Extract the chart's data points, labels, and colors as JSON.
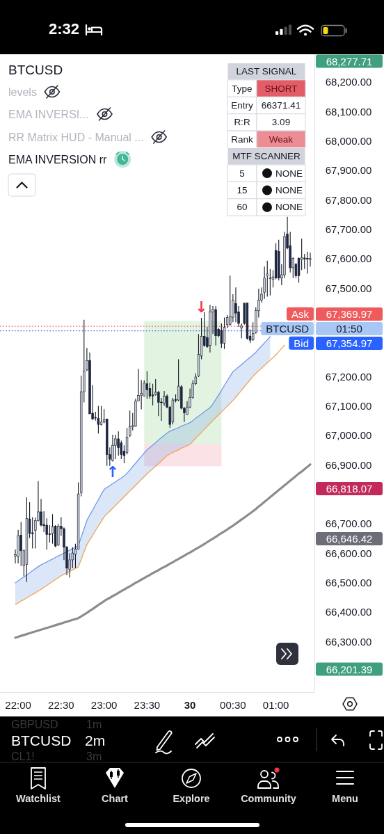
{
  "chart_data": {
    "type": "candlestick",
    "title": "BTCUSD",
    "categories": [
      null,
      "22:00",
      null,
      null,
      null,
      null,
      null,
      null,
      null,
      null,
      null,
      null,
      null,
      null,
      null,
      null,
      "22:30",
      null,
      null,
      null,
      null,
      null,
      null,
      null,
      null,
      null,
      null,
      null,
      null,
      null,
      null,
      "23:00",
      null,
      null,
      null,
      null,
      null,
      null,
      null,
      null,
      null,
      null,
      null,
      null,
      null,
      null,
      "23:30",
      null,
      null,
      null,
      null,
      null,
      null,
      null,
      null,
      null,
      null,
      null,
      null,
      null,
      null,
      "30",
      null,
      null,
      null,
      null,
      null,
      null,
      null,
      null,
      null,
      null,
      null,
      null,
      null,
      null,
      "00:30",
      null,
      null,
      null,
      null,
      null,
      null,
      null,
      null,
      null,
      null,
      null,
      null,
      null,
      null,
      "01:00",
      null,
      null,
      null,
      null,
      null,
      null,
      null,
      null,
      null,
      null,
      null,
      null
    ],
    "ylim": [
      66128,
      68294
    ],
    "yticks": [
      {
        "value": 66300,
        "label": "66,300.00"
      },
      {
        "value": 66400,
        "label": "66,400.00"
      },
      {
        "value": 66500,
        "label": "66,500.00"
      },
      {
        "value": 66600,
        "label": "66,600.00"
      },
      {
        "value": 66700,
        "label": "66,700.00"
      },
      {
        "value": 66900,
        "label": "66,900.00"
      },
      {
        "value": 67000,
        "label": "67,000.00"
      },
      {
        "value": 67100,
        "label": "67,100.00"
      },
      {
        "value": 67200,
        "label": "67,200.00"
      },
      {
        "value": 67500,
        "label": "67,500.00"
      },
      {
        "value": 67600,
        "label": "67,600.00"
      },
      {
        "value": 67700,
        "label": "67,700.00"
      },
      {
        "value": 67800,
        "label": "67,800.00"
      },
      {
        "value": 67900,
        "label": "67,900.00"
      },
      {
        "value": 68000,
        "label": "68,000.00"
      },
      {
        "value": 68100,
        "label": "68,100.00"
      },
      {
        "value": 68200,
        "label": "68,200.00"
      }
    ],
    "series": [
      {
        "type": "line",
        "color": "#8fce8a",
        "values": [
          null,
          null,
          null,
          null,
          null,
          null,
          null,
          null,
          null,
          null,
          null,
          null,
          null,
          null,
          null,
          null,
          null,
          null,
          null,
          null,
          null,
          null,
          null,
          null,
          null,
          null,
          null,
          null,
          null,
          null,
          null,
          null,
          null,
          null,
          null,
          null,
          null,
          null,
          null,
          null,
          null,
          null,
          null,
          null,
          null,
          null,
          null,
          null,
          null,
          null,
          null,
          null,
          null,
          null,
          null,
          null,
          null,
          null,
          null,
          null,
          null,
          null,
          null,
          null,
          null,
          null,
          null,
          null,
          null,
          null,
          null,
          null,
          null,
          null,
          null,
          null,
          null,
          null,
          null,
          null,
          null,
          null,
          null,
          null,
          null,
          null,
          null,
          null,
          null,
          null,
          null,
          null,
          null,
          null,
          null,
          null,
          null,
          null,
          null,
          null,
          null,
          null,
          null,
          null
        ],
        "lower": [
          null,
          null,
          null,
          null,
          null,
          null,
          null,
          null,
          null,
          null,
          null,
          null,
          null,
          null,
          null,
          null,
          null,
          null,
          null,
          null,
          null,
          null,
          null,
          null,
          null,
          null,
          null,
          null,
          null,
          null,
          null,
          null,
          null,
          null,
          null,
          null,
          null,
          null,
          null,
          null,
          null,
          null,
          null,
          null,
          null,
          66971,
          66971,
          66971,
          66971,
          66971,
          66971,
          66971,
          66971,
          66971,
          66971,
          66971,
          66971,
          66971,
          66971,
          66971,
          66971,
          66971,
          66971,
          66971,
          66971,
          66971,
          66971,
          66971,
          66971,
          66971,
          66971,
          66971,
          66971,
          null,
          null,
          null,
          null,
          null,
          null,
          null,
          null,
          null,
          null,
          null,
          null,
          null,
          null,
          null,
          null,
          null,
          null,
          null,
          null,
          null,
          null,
          null,
          null,
          null,
          null,
          null,
          null,
          null,
          null,
          null
        ],
        "upper": [
          null,
          null,
          null,
          null,
          null,
          null,
          null,
          null,
          null,
          null,
          null,
          null,
          null,
          null,
          null,
          null,
          null,
          null,
          null,
          null,
          null,
          null,
          null,
          null,
          null,
          null,
          null,
          null,
          null,
          null,
          null,
          null,
          null,
          null,
          null,
          null,
          null,
          null,
          null,
          null,
          null,
          null,
          null,
          null,
          null,
          67388,
          67388,
          67388,
          67388,
          67388,
          67388,
          67388,
          67388,
          67388,
          67388,
          67388,
          67388,
          67388,
          67388,
          67388,
          67388,
          67388,
          67388,
          67388,
          67388,
          67388,
          67388,
          67388,
          67388,
          67388,
          67388,
          67388,
          67388,
          null,
          null,
          null,
          null,
          null,
          null,
          null,
          null,
          null,
          null,
          null,
          null,
          null,
          null,
          null,
          null,
          null,
          null,
          null,
          null,
          null,
          null,
          null,
          null,
          null,
          null,
          null,
          null,
          null,
          null,
          null
        ]
      },
      {
        "type": "line",
        "color": "#f08a9a",
        "values": [
          null,
          null,
          null,
          null,
          null,
          null,
          null,
          null,
          null,
          null,
          null,
          null,
          null,
          null,
          null,
          null,
          null,
          null,
          null,
          null,
          null,
          null,
          null,
          null,
          null,
          null,
          null,
          null,
          null,
          null,
          null,
          null,
          null,
          null,
          null,
          null,
          null,
          null,
          null,
          null,
          null,
          null,
          null,
          null,
          null,
          null,
          null,
          null,
          null,
          null,
          null,
          null,
          null,
          null,
          null,
          null,
          null,
          null,
          null,
          null,
          null,
          null,
          null,
          null,
          null,
          null,
          null,
          null,
          null,
          null,
          null,
          null,
          null,
          null,
          null,
          null,
          null,
          null,
          null,
          null,
          null,
          null,
          null,
          null,
          null,
          null,
          null,
          null,
          null,
          null,
          null,
          null,
          null,
          null,
          null,
          null,
          null,
          null,
          null,
          null,
          null,
          null,
          null,
          null
        ],
        "lower": [
          null,
          null,
          null,
          null,
          null,
          null,
          null,
          null,
          null,
          null,
          null,
          null,
          null,
          null,
          null,
          null,
          null,
          null,
          null,
          null,
          null,
          null,
          null,
          null,
          null,
          null,
          null,
          null,
          null,
          null,
          null,
          null,
          null,
          null,
          null,
          null,
          null,
          null,
          null,
          null,
          null,
          null,
          null,
          null,
          null,
          66895,
          66895,
          66895,
          66895,
          66895,
          66895,
          66895,
          66895,
          66895,
          66895,
          66895,
          66895,
          66895,
          66895,
          66895,
          66895,
          66895,
          66895,
          66895,
          66895,
          66895,
          66895,
          66895,
          66895,
          66895,
          66895,
          66895,
          66895,
          null,
          null,
          null,
          null,
          null,
          null,
          null,
          null,
          null,
          null,
          null,
          null,
          null,
          null,
          null,
          null,
          null,
          null,
          null,
          null,
          null,
          null,
          null,
          null,
          null,
          null,
          null,
          null,
          null,
          null,
          null
        ],
        "upper": [
          null,
          null,
          null,
          null,
          null,
          null,
          null,
          null,
          null,
          null,
          null,
          null,
          null,
          null,
          null,
          null,
          null,
          null,
          null,
          null,
          null,
          null,
          null,
          null,
          null,
          null,
          null,
          null,
          null,
          null,
          null,
          null,
          null,
          null,
          null,
          null,
          null,
          null,
          null,
          null,
          null,
          null,
          null,
          null,
          null,
          66971,
          66971,
          66971,
          66971,
          66971,
          66971,
          66971,
          66971,
          66971,
          66971,
          66971,
          66971,
          66971,
          66971,
          66971,
          66971,
          66971,
          66971,
          66971,
          66971,
          66971,
          66971,
          66971,
          66971,
          66971,
          66971,
          66971,
          66971,
          null,
          null,
          null,
          null,
          null,
          null,
          null,
          null,
          null,
          null,
          null,
          null,
          null,
          null,
          null,
          null,
          null,
          null,
          null,
          null,
          null,
          null,
          null,
          null,
          null,
          null,
          null,
          null,
          null,
          null,
          null
        ]
      },
      {
        "type": "line",
        "color": "#6f9be5",
        "values": [
          66499,
          66506,
          66513,
          66519,
          66526,
          66533,
          66540,
          66547,
          66554,
          66560,
          66565,
          66570,
          66575,
          66580,
          66585,
          66590,
          66595,
          66600,
          66605,
          66610,
          66615,
          66620,
          66625,
          66654,
          66682,
          66711,
          66729,
          66746,
          66764,
          66781,
          66799,
          66816,
          66823,
          66829,
          66836,
          66842,
          66849,
          66855,
          66862,
          66871,
          66882,
          66894,
          66905,
          66917,
          66928,
          66940,
          66951,
          66959,
          66967,
          66975,
          66984,
          66992,
          67000,
          67008,
          67014,
          67018,
          67022,
          67026,
          67031,
          67035,
          67039,
          67043,
          67050,
          67058,
          67065,
          67072,
          67080,
          67087,
          67094,
          67106,
          67122,
          67137,
          67153,
          67169,
          67185,
          67200,
          67216,
          67224,
          67232,
          67240,
          67249,
          67257,
          67265,
          67273,
          67282,
          67293,
          67303,
          67314,
          67324,
          67335,
          null,
          null,
          null,
          null,
          null,
          null,
          null,
          null,
          null,
          null,
          null,
          null,
          null,
          null
        ],
        "lower": [
          66425,
          66431,
          66437,
          66442,
          66448,
          66454,
          66460,
          66465,
          66471,
          66477,
          66484,
          66490,
          66497,
          66503,
          66510,
          66516,
          66523,
          66528,
          66533,
          66538,
          66543,
          66548,
          66553,
          66578,
          66604,
          66629,
          66645,
          66660,
          66676,
          66692,
          66707,
          66723,
          66733,
          66742,
          66752,
          66762,
          66772,
          66781,
          66791,
          66801,
          66811,
          66820,
          66830,
          66840,
          66850,
          66859,
          66869,
          66878,
          66887,
          66895,
          66904,
          66913,
          66922,
          66931,
          66937,
          66942,
          66946,
          66951,
          66956,
          66960,
          66965,
          66970,
          66980,
          66990,
          67000,
          67010,
          67020,
          67030,
          67040,
          67050,
          67060,
          67070,
          67079,
          67089,
          67099,
          67108,
          67118,
          67130,
          67141,
          67153,
          67165,
          67177,
          67188,
          67200,
          67210,
          67219,
          67228,
          67237,
          67246,
          67255,
          null,
          null,
          null,
          null,
          null,
          null,
          null,
          null,
          null,
          null,
          null,
          null,
          null,
          null
        ],
        "upper": [
          66499,
          66506,
          66513,
          66519,
          66526,
          66533,
          66540,
          66547,
          66554,
          66560,
          66565,
          66570,
          66575,
          66580,
          66585,
          66590,
          66595,
          66600,
          66605,
          66610,
          66615,
          66620,
          66625,
          66654,
          66682,
          66711,
          66729,
          66746,
          66764,
          66781,
          66799,
          66816,
          66823,
          66829,
          66836,
          66842,
          66849,
          66855,
          66862,
          66871,
          66882,
          66894,
          66905,
          66917,
          66928,
          66940,
          66951,
          66959,
          66967,
          66975,
          66984,
          66992,
          67000,
          67008,
          67014,
          67018,
          67022,
          67026,
          67031,
          67035,
          67039,
          67043,
          67050,
          67058,
          67065,
          67072,
          67080,
          67087,
          67094,
          67106,
          67122,
          67137,
          67153,
          67169,
          67185,
          67200,
          67216,
          67224,
          67232,
          67240,
          67249,
          67257,
          67265,
          67273,
          67282,
          67293,
          67303,
          67314,
          67324,
          67335,
          null,
          null,
          null,
          null,
          null,
          null,
          null,
          null,
          null,
          null,
          null,
          null,
          null,
          null
        ]
      },
      {
        "type": "line",
        "color": "#f0a455",
        "values": [
          66425,
          66431,
          66437,
          66442,
          66448,
          66454,
          66460,
          66465,
          66471,
          66477,
          66484,
          66490,
          66497,
          66503,
          66510,
          66516,
          66523,
          66528,
          66533,
          66538,
          66543,
          66548,
          66553,
          66578,
          66604,
          66629,
          66645,
          66660,
          66676,
          66692,
          66707,
          66723,
          66733,
          66742,
          66752,
          66762,
          66772,
          66781,
          66791,
          66801,
          66811,
          66820,
          66830,
          66840,
          66850,
          66859,
          66869,
          66878,
          66887,
          66895,
          66904,
          66913,
          66922,
          66931,
          66937,
          66942,
          66946,
          66951,
          66956,
          66960,
          66965,
          66970,
          66980,
          66990,
          67000,
          67010,
          67020,
          67030,
          67040,
          67050,
          67060,
          67070,
          67079,
          67089,
          67099,
          67108,
          67118,
          67130,
          67141,
          67153,
          67165,
          67177,
          67188,
          67200,
          67210,
          67219,
          67228,
          67237,
          67246,
          67255,
          67264,
          67273,
          67284,
          67295,
          67306,
          null,
          null,
          null,
          null,
          null,
          null,
          null,
          null,
          null
        ]
      },
      {
        "type": "line",
        "color": "#8c8c8c",
        "values": [
          66313,
          66316,
          66319,
          66322,
          66325,
          66328,
          66331,
          66334,
          66337,
          66340,
          66343,
          66346,
          66349,
          66352,
          66355,
          66358,
          66361,
          66364,
          66367,
          66370,
          66373,
          66376,
          66379,
          66385,
          66391,
          66397,
          66404,
          66410,
          66417,
          66424,
          66430,
          66437,
          66443,
          66448,
          66454,
          66459,
          66465,
          66471,
          66476,
          66482,
          66487,
          66493,
          66499,
          66504,
          66510,
          66515,
          66521,
          66526,
          66532,
          66537,
          66542,
          66548,
          66553,
          66558,
          66564,
          66569,
          66575,
          66580,
          66586,
          66591,
          66597,
          66602,
          66608,
          66614,
          66619,
          66625,
          66631,
          66637,
          66643,
          66649,
          66655,
          66662,
          66668,
          66674,
          66680,
          66687,
          66693,
          66700,
          66707,
          66714,
          66721,
          66728,
          66735,
          66742,
          66750,
          66758,
          66766,
          66774,
          66782,
          66790,
          66798,
          66806,
          66814,
          66822,
          66830,
          66838,
          66846,
          66854,
          66862,
          66870,
          66877,
          66885,
          66893,
          66901
        ]
      },
      {
        "type": "candlestick",
        "color": "#131722",
        "ohlc": [
          [
            66590,
            66612,
            66565,
            66595
          ],
          [
            66588,
            66679,
            66565,
            66659
          ],
          [
            66661,
            66706,
            66557,
            66608
          ],
          [
            66557,
            66612,
            66521,
            66608
          ],
          [
            66561,
            66789,
            66502,
            66718
          ],
          [
            66716,
            66773,
            66651,
            66667
          ],
          [
            66669,
            66722,
            66616,
            66666
          ],
          [
            66677,
            66721,
            66616,
            66710
          ],
          [
            66710,
            66844,
            66707,
            66740
          ],
          [
            66740,
            66784,
            66691,
            66695
          ],
          [
            66697,
            66742,
            66671,
            66693
          ],
          [
            66695,
            66718,
            66612,
            66663
          ],
          [
            66665,
            66695,
            66636,
            66663
          ],
          [
            66667,
            66732,
            66632,
            66689
          ],
          [
            66691,
            66695,
            66620,
            66624
          ],
          [
            66628,
            66699,
            66624,
            66691
          ],
          [
            66691,
            66722,
            66659,
            66683
          ],
          [
            66683,
            66687,
            66576,
            66620
          ],
          [
            66620,
            66624,
            66525,
            66549
          ],
          [
            66545,
            66600,
            66517,
            66577
          ],
          [
            66577,
            66620,
            66549,
            66600
          ],
          [
            66596,
            66632,
            66549,
            66614
          ],
          [
            66614,
            66840,
            66612,
            66801
          ],
          [
            66805,
            67203,
            66793,
            67148
          ],
          [
            67148,
            67392,
            67112,
            67218
          ],
          [
            67222,
            67297,
            67218,
            67254
          ],
          [
            67254,
            67281,
            67073,
            67073
          ],
          [
            67075,
            67171,
            67053,
            67055
          ],
          [
            67061,
            67080,
            67050,
            67059
          ],
          [
            67057,
            67100,
            67006,
            67037
          ],
          [
            67036,
            67100,
            67033,
            67045
          ],
          [
            67045,
            67089,
            67041,
            67053
          ],
          [
            67055,
            67057,
            66896,
            66935
          ],
          [
            66935,
            66959,
            66896,
            66919
          ],
          [
            66915,
            67002,
            66911,
            66966
          ],
          [
            66966,
            67002,
            66919,
            66988
          ],
          [
            66988,
            67013,
            66931,
            66958
          ],
          [
            66974,
            66982,
            66919,
            66935
          ],
          [
            66946,
            66966,
            66905,
            66931
          ],
          [
            66942,
            67025,
            66935,
            66994
          ],
          [
            66998,
            67084,
            66994,
            67029
          ],
          [
            67029,
            67076,
            67017,
            67033
          ],
          [
            67031,
            67124,
            67029,
            67116
          ],
          [
            67117,
            67226,
            67116,
            67135
          ],
          [
            67135,
            67188,
            67088,
            67143
          ],
          [
            67133,
            67187,
            67131,
            67177
          ],
          [
            67175,
            67218,
            67124,
            67155
          ],
          [
            67159,
            67179,
            67124,
            67133
          ],
          [
            67137,
            67175,
            67102,
            67134
          ],
          [
            67139,
            67191,
            67135,
            67146
          ],
          [
            67146,
            67151,
            67065,
            67112
          ],
          [
            67113,
            67127,
            67049,
            67111
          ],
          [
            67109,
            67151,
            67100,
            67133
          ],
          [
            67133,
            67139,
            67092,
            67096
          ],
          [
            67096,
            67100,
            67025,
            67037
          ],
          [
            67045,
            67127,
            67037,
            67120
          ],
          [
            67121,
            67139,
            67112,
            67118
          ],
          [
            67120,
            67258,
            67116,
            67167
          ],
          [
            67165,
            67171,
            67088,
            67092
          ],
          [
            67092,
            67096,
            67045,
            67076
          ],
          [
            67072,
            67116,
            67069,
            67096
          ],
          [
            67096,
            67159,
            67092,
            67128
          ],
          [
            67128,
            67187,
            67124,
            67175
          ],
          [
            67175,
            67210,
            67171,
            67198
          ],
          [
            67202,
            67344,
            67198,
            67275
          ],
          [
            67269,
            67399,
            67258,
            67336
          ],
          [
            67336,
            67419,
            67301,
            67305
          ],
          [
            67332,
            67368,
            67297,
            67301
          ],
          [
            67305,
            67443,
            67281,
            67419
          ],
          [
            67419,
            67439,
            67344,
            67427
          ],
          [
            67427,
            67439,
            67305,
            67338
          ],
          [
            67360,
            67364,
            67333,
            67338
          ],
          [
            67356,
            67380,
            67297,
            67312
          ],
          [
            67313,
            67400,
            67293,
            67367
          ],
          [
            67376,
            67408,
            67364,
            67400
          ],
          [
            67376,
            67542,
            67372,
            67404
          ],
          [
            67401,
            67479,
            67384,
            67459
          ],
          [
            67447,
            67502,
            67384,
            67415
          ],
          [
            67419,
            67439,
            67368,
            67380
          ],
          [
            67364,
            67380,
            67329,
            67372
          ],
          [
            67449,
            67449,
            67376,
            67380
          ],
          [
            67449,
            67451,
            67325,
            67329
          ],
          [
            67337,
            67360,
            67313,
            67323
          ],
          [
            67325,
            67384,
            67321,
            67346
          ],
          [
            67349,
            67435,
            67345,
            67423
          ],
          [
            67423,
            67498,
            67400,
            67459
          ],
          [
            67459,
            67502,
            67451,
            67479
          ],
          [
            67485,
            67573,
            67463,
            67534
          ],
          [
            67542,
            67593,
            67471,
            67548
          ],
          [
            67532,
            67565,
            67475,
            67535
          ],
          [
            67530,
            67561,
            67502,
            67538
          ],
          [
            67628,
            67652,
            67530,
            67534
          ],
          [
            67624,
            67664,
            67526,
            67534
          ],
          [
            67534,
            67581,
            67510,
            67545
          ],
          [
            67545,
            67691,
            67534,
            67675
          ],
          [
            67683,
            67742,
            67632,
            67636
          ],
          [
            67644,
            67691,
            67553,
            67569
          ],
          [
            67569,
            67604,
            67534,
            67601
          ],
          [
            67581,
            67585,
            67534,
            67542
          ],
          [
            67601,
            67604,
            67518,
            67542
          ],
          [
            67597,
            67668,
            67561,
            67604
          ],
          [
            67602,
            67616,
            67565,
            67599
          ],
          [
            67601,
            67624,
            67549,
            67599
          ],
          [
            67598,
            67620,
            67573,
            67600
          ]
        ],
        "colors": [
          "#c3c9d6",
          "#c3c9d6",
          "#1d2848",
          "#c3c9d6",
          "#c3c9d6",
          "#1d2848",
          "#1d2848",
          "#c3c9d6",
          "#c3c9d6",
          "#1d2848",
          "#1d2848",
          "#1d2848",
          "#1d2848",
          "#c3c9d6",
          "#1d2848",
          "#c3c9d6",
          "#1d2848",
          "#1d2848",
          "#1d2848",
          "#c3c9d6",
          "#c3c9d6",
          "#c3c9d6",
          "#c3c9d6",
          "#c3c9d6",
          "#c3c9d6",
          "#c3c9d6",
          "#1d2848",
          "#1d2848",
          "#1d2848",
          "#1d2848",
          "#c3c9d6",
          "#c3c9d6",
          "#1d2848",
          "#1d2848",
          "#c3c9d6",
          "#c3c9d6",
          "#1d2848",
          "#1d2848",
          "#1d2848",
          "#c3c9d6",
          "#c3c9d6",
          "#c3c9d6",
          "#c3c9d6",
          "#c3c9d6",
          "#c3c9d6",
          "#c3c9d6",
          "#1d2848",
          "#1d2848",
          "#1d2848",
          "#c3c9d6",
          "#1d2848",
          "#1d2848",
          "#c3c9d6",
          "#1d2848",
          "#1d2848",
          "#c3c9d6",
          "#1d2848",
          "#c3c9d6",
          "#1d2848",
          "#1d2848",
          "#c3c9d6",
          "#c3c9d6",
          "#c3c9d6",
          "#c3c9d6",
          "#c3c9d6",
          "#c3c9d6",
          "#1d2848",
          "#1d2848",
          "#c3c9d6",
          "#c3c9d6",
          "#1d2848",
          "#1d2848",
          "#1d2848",
          "#c3c9d6",
          "#c3c9d6",
          "#c3c9d6",
          "#c3c9d6",
          "#1d2848",
          "#1d2848",
          "#c3c9d6",
          "#1d2848",
          "#1d2848",
          "#1d2848",
          "#c3c9d6",
          "#c3c9d6",
          "#c3c9d6",
          "#c3c9d6",
          "#c3c9d6",
          "#c3c9d6",
          "#c3c9d6",
          "#c3c9d6",
          "#1d2848",
          "#1d2848",
          "#c3c9d6",
          "#c3c9d6",
          "#1d2848",
          "#1d2848",
          "#c3c9d6",
          "#1d2848",
          "#1d2848",
          "#c3c9d6",
          "#1d2848",
          "#1d2848",
          "#c3c9d6"
        ]
      }
    ],
    "ref_lines": [
      {
        "axis": "y",
        "value": 67369.97,
        "label": "Ask",
        "color": "#ef5a5c",
        "line_style": "dotted"
      },
      {
        "axis": "y",
        "value": 67354.97,
        "label": "Bid",
        "color": "#2962ff",
        "line_style": "dotted"
      }
    ],
    "annotations": [
      "levels",
      "EMA INVERSI...",
      "RR Matrix HUD - Manual ...",
      "EMA INVERSION rr",
      "LAST SIGNAL",
      "Type",
      "SHORT",
      "Entry",
      "66371.41",
      "R:R",
      "3.09",
      "Rank",
      "Weak",
      "MTF SCANNER",
      "5",
      "NONE",
      "15",
      "NONE",
      "60",
      "NONE",
      "2:32",
      "GBPUSD",
      "1m",
      "BTCUSD",
      "2m",
      "CL1!",
      "3m",
      "Watchlist",
      "Chart",
      "Explore",
      "Community",
      "Menu",
      "68,277.71",
      "67,369.97",
      "BTCUSD",
      "01:50",
      "67,354.97",
      "66,818.07",
      "66,646.42",
      "66,201.39",
      {
        "text": "↑",
        "y": 66911
      },
      {
        "text": "↓",
        "y": 67399
      }
    ]
  }
}
